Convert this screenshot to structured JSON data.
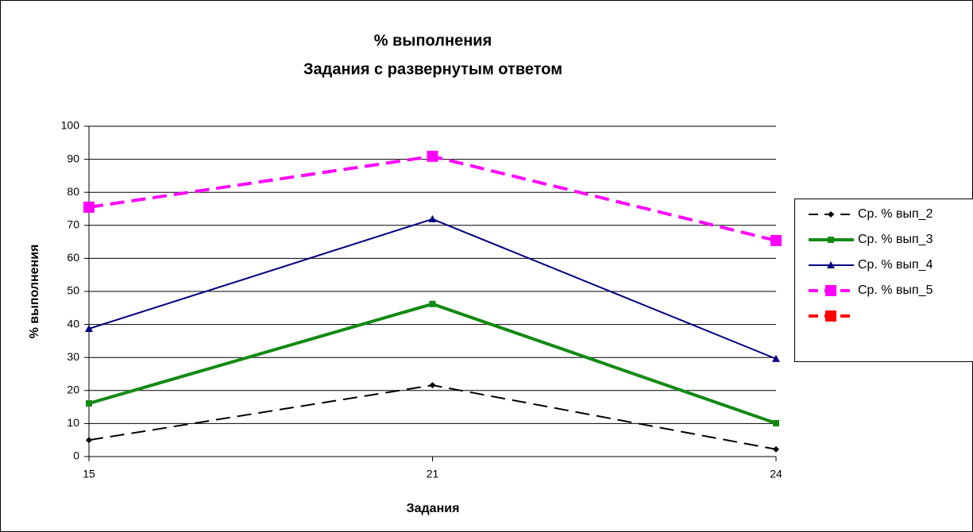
{
  "chart_data": {
    "type": "line",
    "title": "% выполнения",
    "subtitle": "Задания с развернутым ответом",
    "x_label": "Задания",
    "y_label": "% выполнения",
    "categories": [
      "15",
      "21",
      "24"
    ],
    "series": [
      {
        "name": "Ср. % вып_2",
        "color": "#000000",
        "dash": "dashed",
        "marker": "diamond",
        "values": [
          5.0,
          21.6,
          2.2
        ]
      },
      {
        "name": "Ср. % вып_3",
        "color": "#138a13",
        "dash": "solid",
        "marker": "square",
        "values": [
          16.1,
          46.2,
          10.1
        ]
      },
      {
        "name": "Ср. % вып_4",
        "color": "#000080",
        "dash": "solid",
        "marker": "triangle",
        "values": [
          38.7,
          71.9,
          29.6
        ]
      },
      {
        "name": "Ср. % вып_5",
        "color": "#ff00ff",
        "dash": "dashed",
        "marker": "square",
        "values": [
          75.5,
          90.9,
          65.4
        ]
      },
      {
        "name": null,
        "color": "#ff0000",
        "dash": "dashed",
        "marker": "square",
        "values": [
          null,
          null,
          null
        ]
      }
    ],
    "ylim": [
      0,
      100
    ],
    "yticks": [
      0,
      10,
      20,
      30,
      40,
      50,
      60,
      70,
      80,
      90,
      100
    ],
    "grid": true,
    "legend": "right"
  }
}
